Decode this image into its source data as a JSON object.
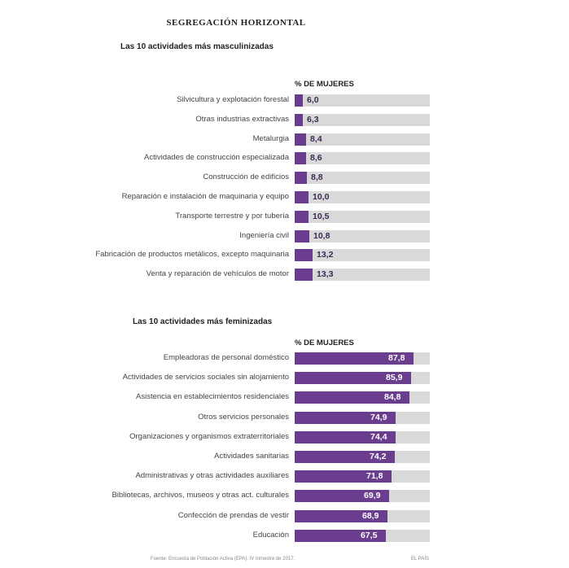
{
  "title": "SEGREGACIÓN HORIZONTAL",
  "chart_data": [
    {
      "type": "bar",
      "orientation": "horizontal",
      "subtitle": "Las 10 actividades más masculinizadas",
      "column_header": "% DE MUJERES",
      "xlim": [
        0,
        100
      ],
      "categories": [
        "Silvicultura y explotación forestal",
        "Otras industrias extractivas",
        "Metalurgia",
        "Actividades de construcción especializada",
        "Construcción de edificios",
        "Reparación e instalación de maquinaria y equipo",
        "Transporte terrestre y por tubería",
        "Ingeniería civil",
        "Fabricación de productos metálicos, excepto maquinaria",
        "Venta y reparación de vehículos de motor"
      ],
      "values": [
        6.0,
        6.3,
        8.4,
        8.6,
        8.8,
        10.0,
        10.5,
        10.8,
        13.2,
        13.3
      ],
      "value_labels": [
        "6,0",
        "6,3",
        "8,4",
        "8,6",
        "8,8",
        "10,0",
        "10,5",
        "10,8",
        "13,2",
        "13,3"
      ],
      "bar_color": "#6a3d8f",
      "track_color": "#d9d9d9"
    },
    {
      "type": "bar",
      "orientation": "horizontal",
      "subtitle": "Las 10 actividades más feminizadas",
      "column_header": "% DE MUJERES",
      "xlim": [
        0,
        100
      ],
      "categories": [
        "Empleadoras de personal doméstico",
        "Actividades de servicios sociales sin alojamiento",
        "Asistencia en establecimientos residenciales",
        "Otros servicios personales",
        "Organizaciones y organismos extraterritoriales",
        "Actividades sanitarias",
        "Administrativas y otras actividades auxiliares",
        "Bibliotecas, archivos, museos y otras act. culturales",
        "Confección de prendas de vestir",
        "Educación"
      ],
      "values": [
        87.8,
        85.9,
        84.8,
        74.9,
        74.4,
        74.2,
        71.8,
        69.9,
        68.9,
        67.5
      ],
      "value_labels": [
        "87,8",
        "85,9",
        "84,8",
        "74,9",
        "74,4",
        "74,2",
        "71,8",
        "69,9",
        "68,9",
        "67,5"
      ],
      "bar_color": "#6a3d8f",
      "track_color": "#d9d9d9"
    }
  ],
  "footer": {
    "source": "Fuente: Encuesta de Población Activa (EPA). IV trimestre de 2017.",
    "brand": "EL PAÍS"
  }
}
